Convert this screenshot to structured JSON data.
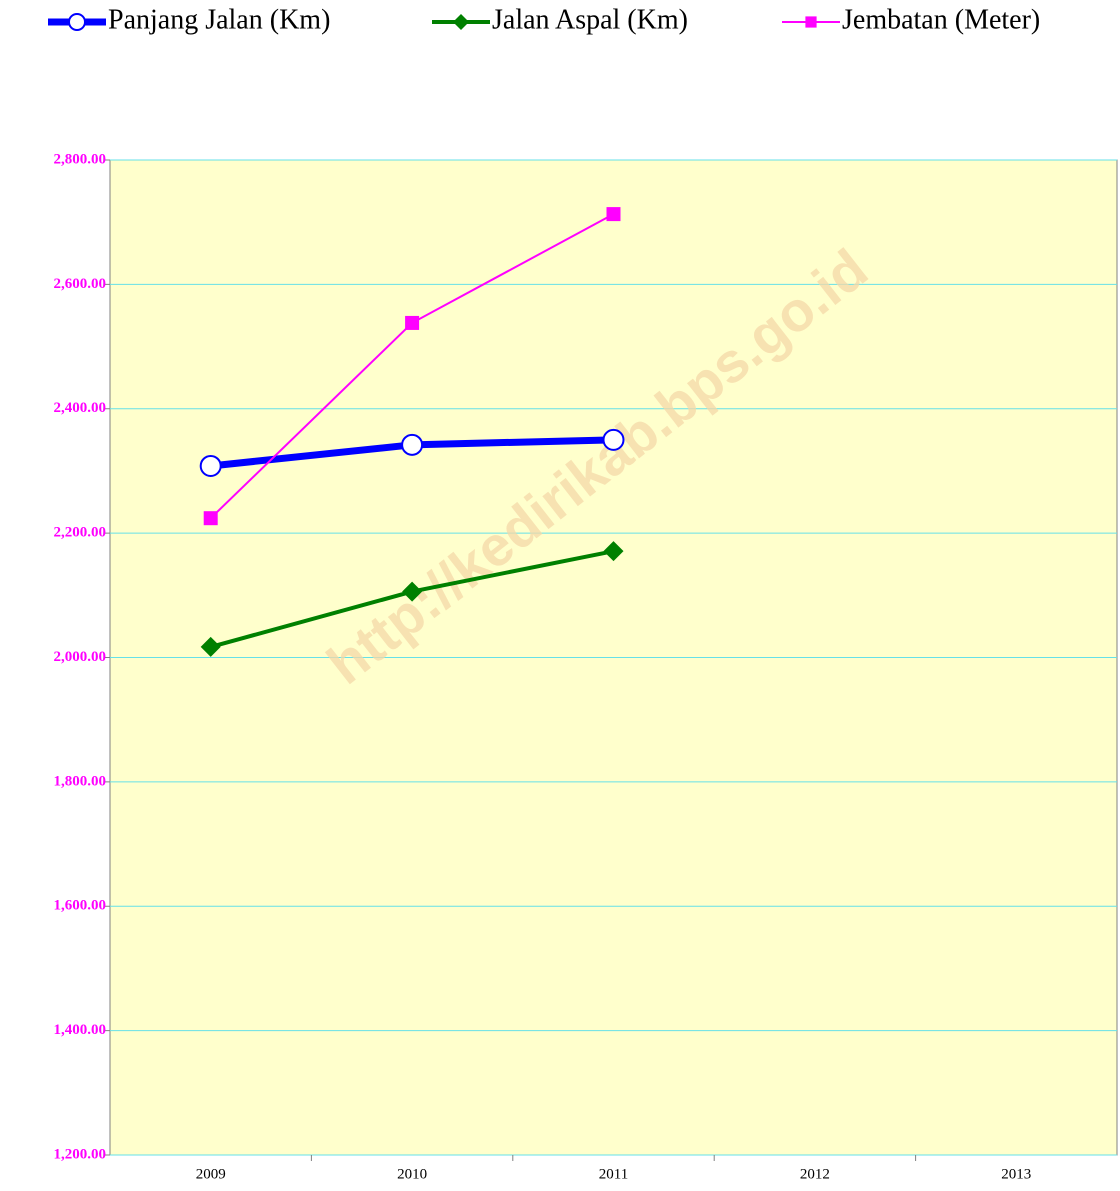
{
  "chart_data": {
    "type": "line",
    "categories": [
      "2009",
      "2010",
      "2011",
      "2012",
      "2013"
    ],
    "series": [
      {
        "name": "Panjang Jalan (Km)",
        "color": "#0000ff",
        "marker": "circle",
        "values": [
          2308,
          2342,
          2350,
          null,
          null
        ]
      },
      {
        "name": "Jalan Aspal (Km)",
        "color": "#008000",
        "marker": "diamond",
        "values": [
          2017,
          2106,
          2171,
          null,
          null
        ]
      },
      {
        "name": "Jembatan (Meter)",
        "color": "#ff00ff",
        "marker": "square",
        "values": [
          2224,
          2538,
          2713,
          null,
          null
        ]
      }
    ],
    "ylim": [
      1200,
      2800
    ],
    "yticks": [
      {
        "value": 1200,
        "label": "1,200.00"
      },
      {
        "value": 1400,
        "label": "1,400.00"
      },
      {
        "value": 1600,
        "label": "1,600.00"
      },
      {
        "value": 1800,
        "label": "1,800.00"
      },
      {
        "value": 2000,
        "label": "2,000.00"
      },
      {
        "value": 2200,
        "label": "2,200.00"
      },
      {
        "value": 2400,
        "label": "2,400.00"
      },
      {
        "value": 2600,
        "label": "2,600.00"
      },
      {
        "value": 2800,
        "label": "2,800.00"
      }
    ],
    "grid": true,
    "legend": "top",
    "watermark": "http://kedirikab.bps.go.id"
  }
}
